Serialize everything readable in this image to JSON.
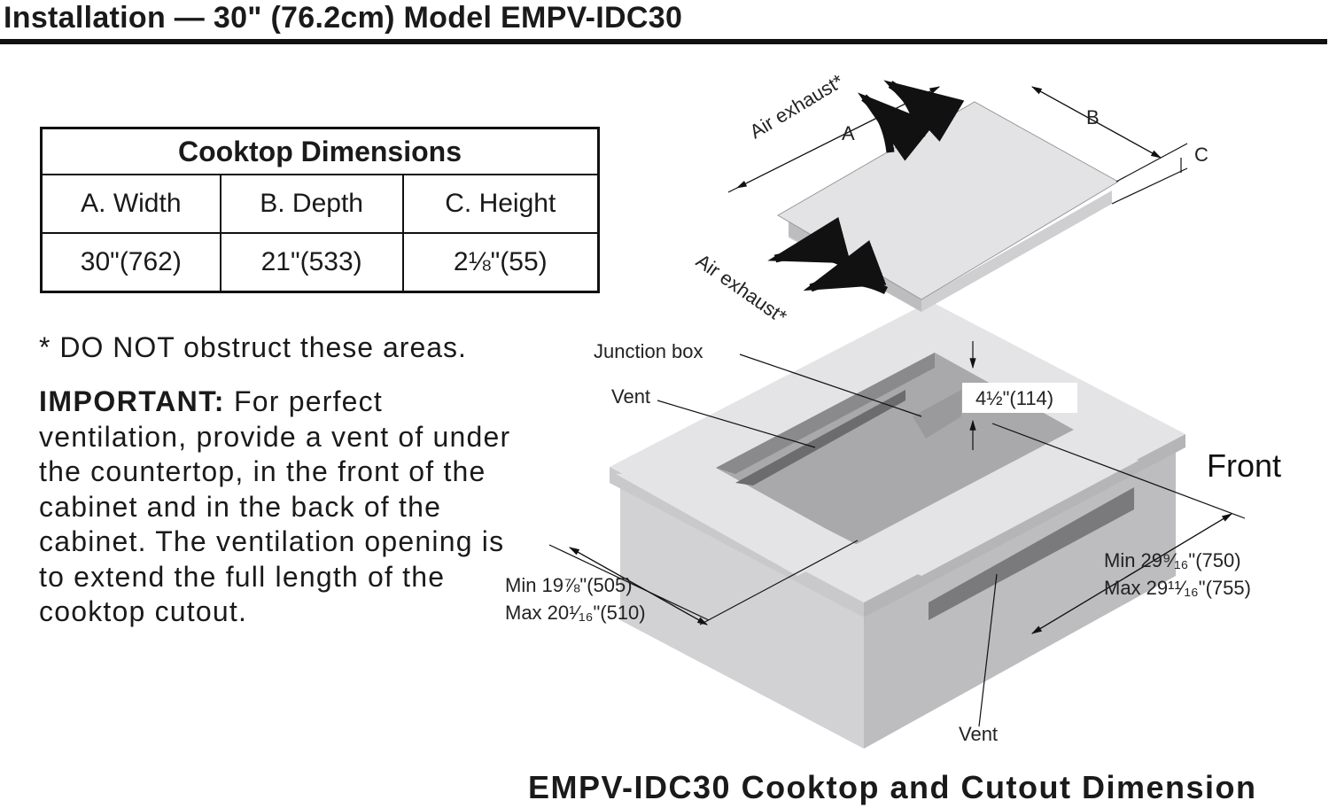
{
  "header": {
    "title": "Installation — 30\" (76.2cm) Model  EMPV-IDC30"
  },
  "table": {
    "caption": "Cooktop Dimensions",
    "columns": [
      "A. Width",
      "B. Depth",
      "C. Height"
    ],
    "values": [
      "30\"(762)",
      "21\"(533)",
      "2⅛\"(55)"
    ]
  },
  "note": "* DO NOT obstruct these areas.",
  "important": {
    "label": "IMPORTANT:",
    "text": " For perfect ventilation, provide a vent of under the countertop, in the front of the cabinet and in the back of the cabinet. The ventilation opening is to extend the full length of the cooktop cutout."
  },
  "diagram": {
    "air_exhaust_top": "Air exhaust*",
    "air_exhaust_side": "Air exhaust*",
    "dim_a": "A",
    "dim_b": "B",
    "dim_c": "C",
    "junction_box": "Junction box",
    "vent_back": "Vent",
    "vent_front": "Vent",
    "junction_depth": "4½\"(114)",
    "front": "Front",
    "depth_min": "Min  19⅞\"(505)",
    "depth_max": "Max 20¹⁄₁₆\"(510)",
    "width_min": "Min 29⁹⁄₁₆\"(750)",
    "width_max": "Max 29¹¹⁄₁₆\"(755)"
  },
  "caption": "EMPV-IDC30 Cooktop and Cutout Dimension"
}
